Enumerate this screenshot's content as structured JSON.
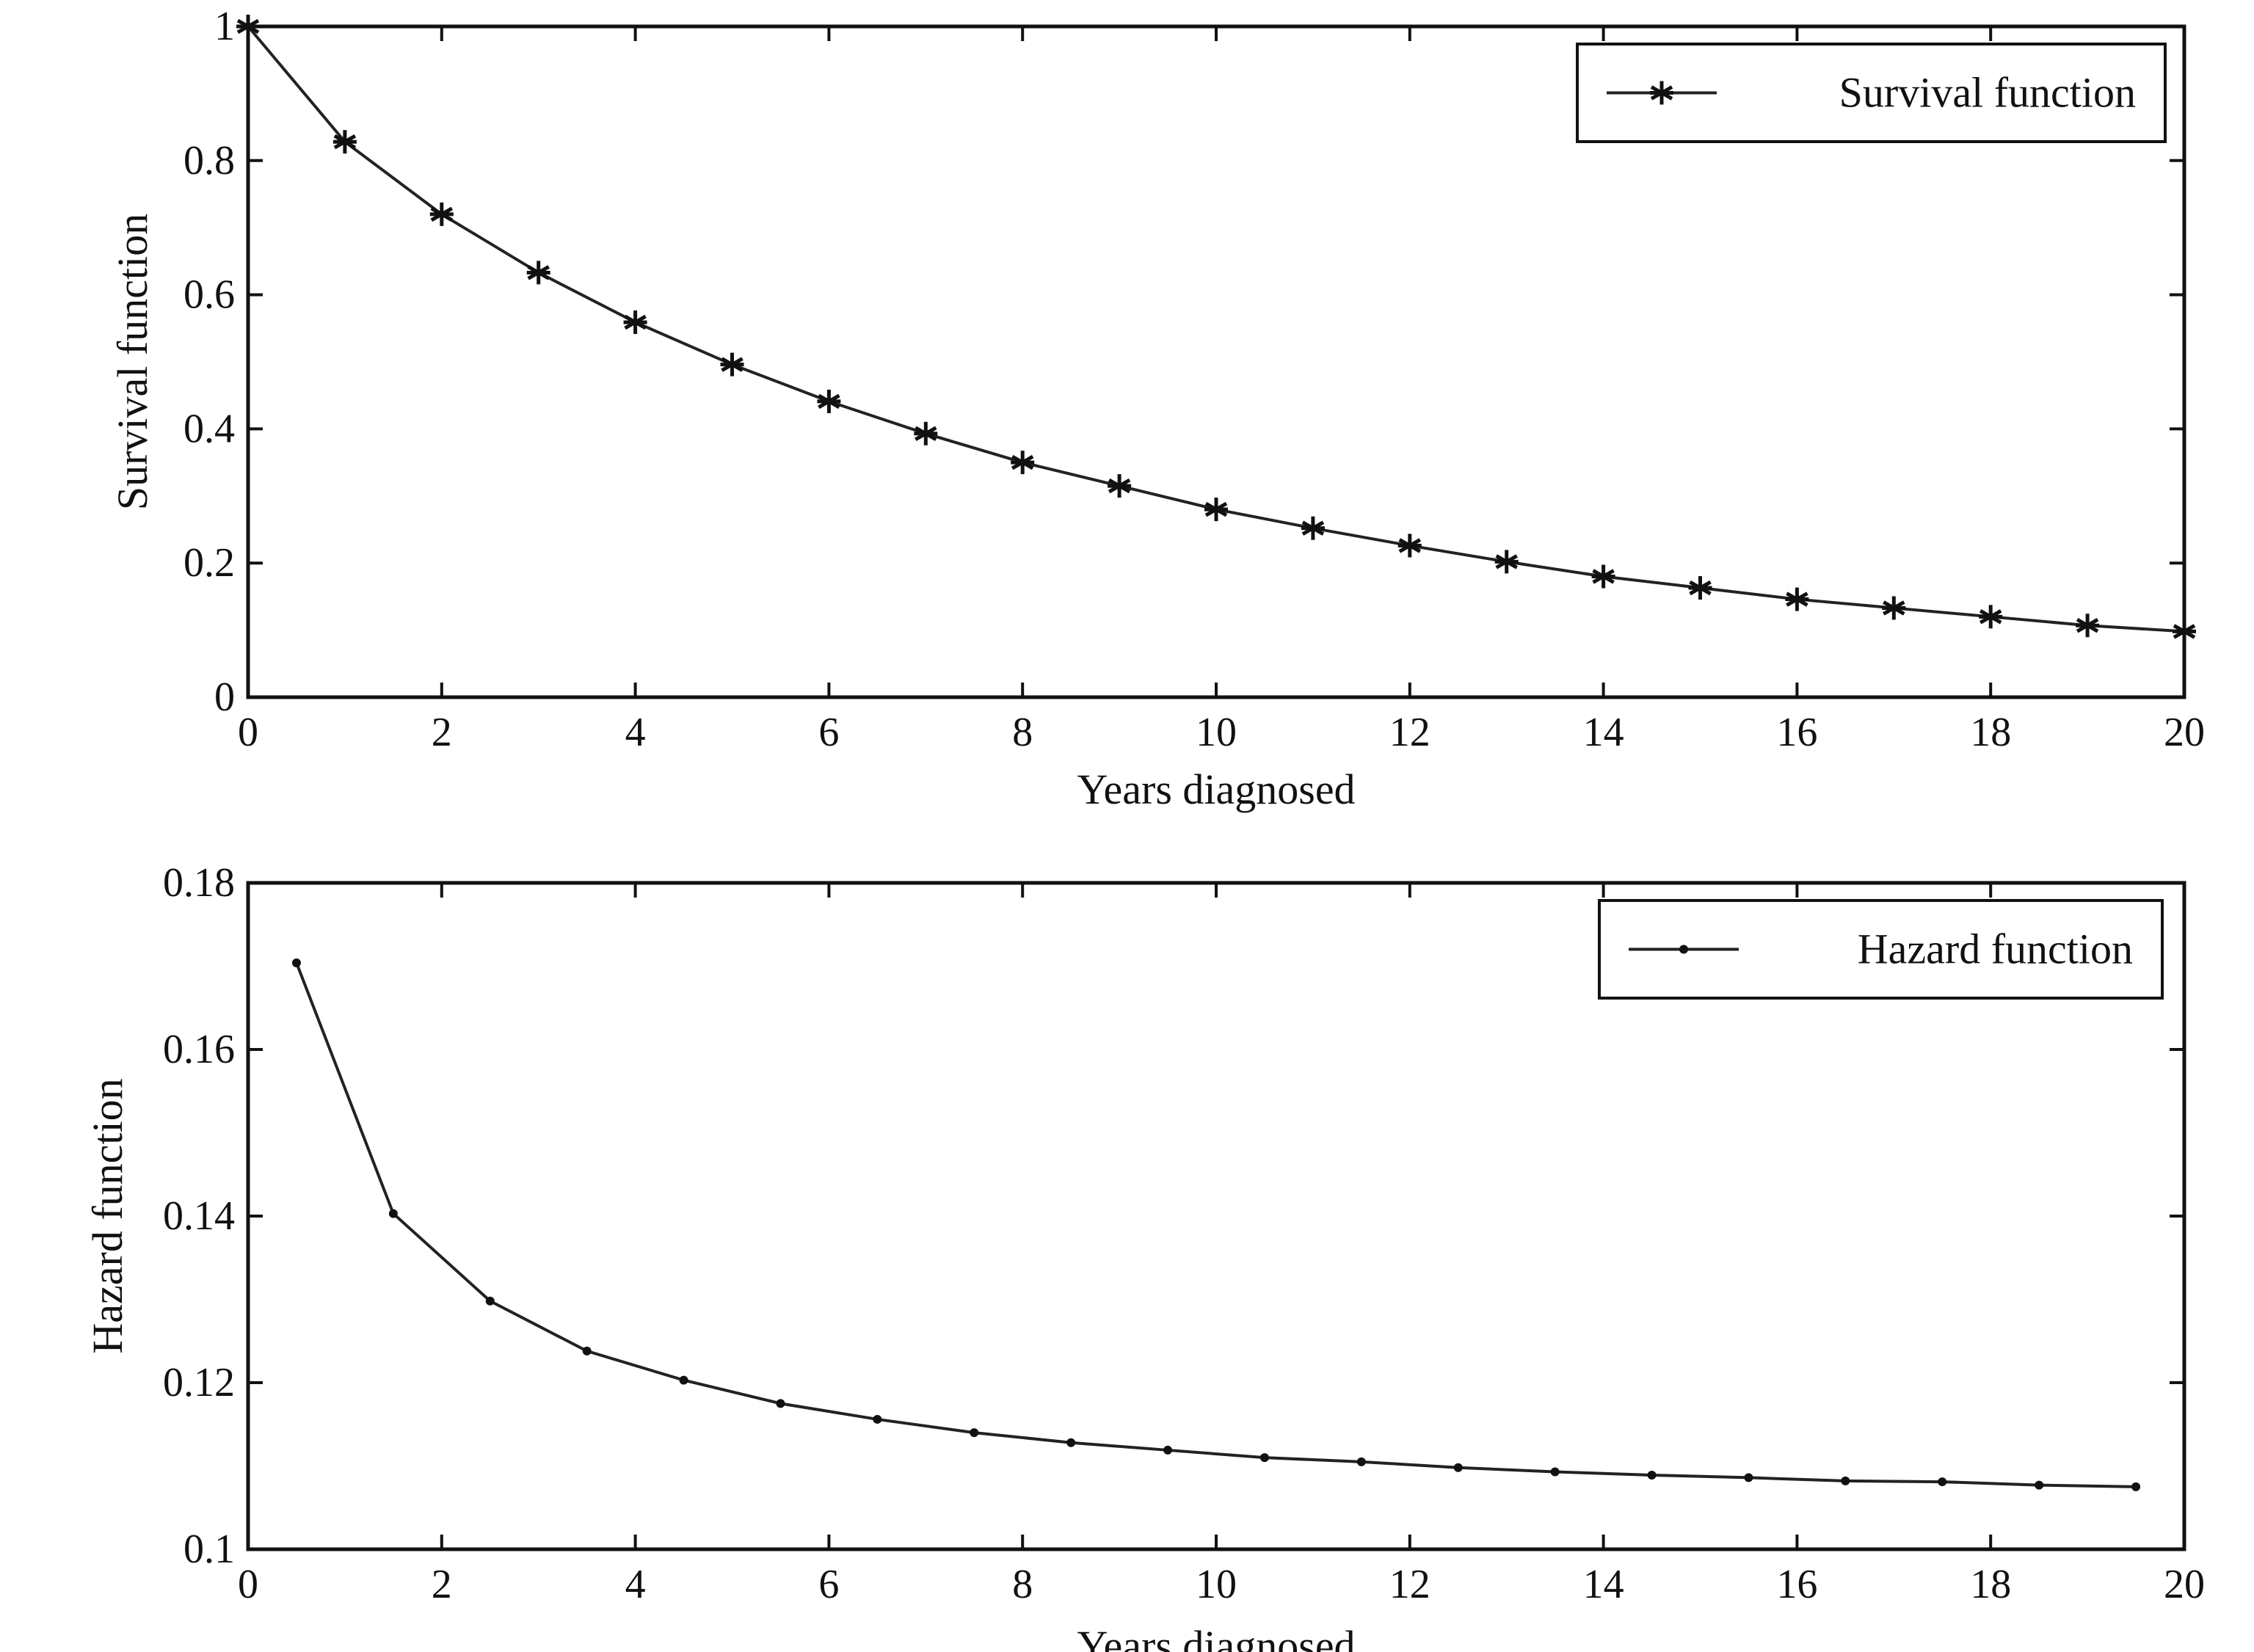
{
  "chart_data": [
    {
      "type": "line",
      "title": "",
      "xlabel": "Years diagnosed",
      "ylabel": "Survival function",
      "xlim": [
        0,
        20
      ],
      "ylim": [
        0,
        1
      ],
      "xticks": [
        "0",
        "2",
        "4",
        "6",
        "8",
        "10",
        "12",
        "14",
        "16",
        "18",
        "20"
      ],
      "yticks": [
        "0",
        "0.2",
        "0.4",
        "0.6",
        "0.8",
        "1"
      ],
      "legend_position": "top-right",
      "grid": false,
      "series": [
        {
          "name": "Survival function",
          "marker": "asterisk",
          "x": [
            0,
            1,
            2,
            3,
            4,
            5,
            6,
            7,
            8,
            9,
            10,
            11,
            12,
            13,
            14,
            15,
            16,
            17,
            18,
            19,
            20
          ],
          "y": [
            1.0,
            0.828,
            0.72,
            0.633,
            0.559,
            0.496,
            0.441,
            0.393,
            0.35,
            0.315,
            0.28,
            0.252,
            0.226,
            0.202,
            0.18,
            0.163,
            0.146,
            0.133,
            0.12,
            0.107,
            0.098
          ]
        }
      ]
    },
    {
      "type": "line",
      "title": "",
      "xlabel": "Years diagnosed",
      "ylabel": "Hazard function",
      "xlim": [
        0,
        20
      ],
      "ylim": [
        0.1,
        0.18
      ],
      "xticks": [
        "0",
        "2",
        "4",
        "6",
        "8",
        "10",
        "12",
        "14",
        "16",
        "18",
        "20"
      ],
      "yticks": [
        "0.1",
        "0.12",
        "0.14",
        "0.16",
        "0.18"
      ],
      "legend_position": "top-right",
      "grid": false,
      "series": [
        {
          "name": "Hazard function",
          "marker": "dot",
          "x": [
            0.5,
            1.5,
            2.5,
            3.5,
            4.5,
            5.5,
            6.5,
            7.5,
            8.5,
            9.5,
            10.5,
            11.5,
            12.5,
            13.5,
            14.5,
            15.5,
            16.5,
            17.5,
            18.5,
            19.5
          ],
          "y": [
            0.1704,
            0.1403,
            0.1298,
            0.1238,
            0.1203,
            0.1175,
            0.1156,
            0.114,
            0.1128,
            0.1119,
            0.111,
            0.1105,
            0.1098,
            0.1093,
            0.1089,
            0.1086,
            0.1082,
            0.1081,
            0.1077,
            0.1075
          ]
        }
      ]
    }
  ]
}
